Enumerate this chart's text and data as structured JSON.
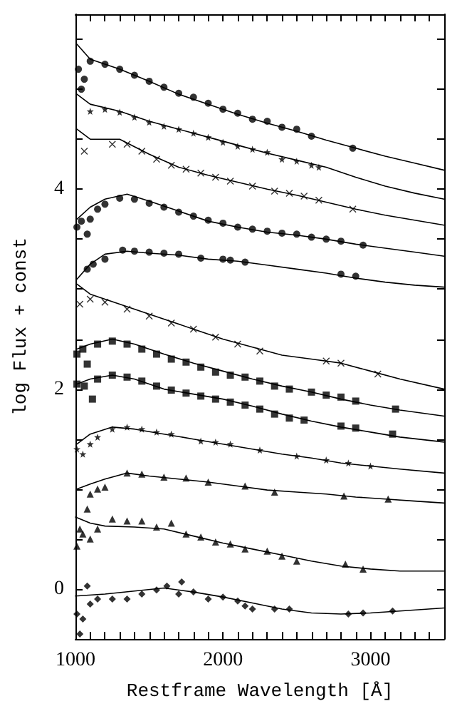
{
  "chart_data": {
    "type": "scatter",
    "xlabel": "Restframe Wavelength [Å]",
    "ylabel": "log Flux + const",
    "xlim": [
      1000,
      3500
    ],
    "ylim": [
      -0.5,
      5.75
    ],
    "xticks": [
      1000,
      {
        "value": 1100,
        "label": null
      },
      {
        "value": 1200,
        "label": null
      },
      {
        "value": 1300,
        "label": null
      },
      {
        "value": 1400,
        "label": null
      },
      {
        "value": 1500,
        "label": null
      },
      {
        "value": 1600,
        "label": null
      },
      {
        "value": 1700,
        "label": null
      },
      {
        "value": 1800,
        "label": null
      },
      {
        "value": 1900,
        "label": null
      },
      2000,
      {
        "value": 2100,
        "label": null
      },
      {
        "value": 2200,
        "label": null
      },
      {
        "value": 2300,
        "label": null
      },
      {
        "value": 2400,
        "label": null
      },
      {
        "value": 2500,
        "label": null
      },
      {
        "value": 2600,
        "label": null
      },
      {
        "value": 2700,
        "label": null
      },
      {
        "value": 2800,
        "label": null
      },
      {
        "value": 2900,
        "label": null
      },
      3000,
      {
        "value": 3100,
        "label": null
      },
      {
        "value": 3200,
        "label": null
      },
      {
        "value": 3300,
        "label": null
      },
      {
        "value": 3400,
        "label": null
      }
    ],
    "yticks": [
      {
        "value": -0.5,
        "label": null
      },
      0,
      {
        "value": 0.5,
        "label": null
      },
      {
        "value": 1,
        "label": null
      },
      {
        "value": 1.5,
        "label": null
      },
      2,
      {
        "value": 2.5,
        "label": null
      },
      {
        "value": 3,
        "label": null
      },
      {
        "value": 3.5,
        "label": null
      },
      4,
      {
        "value": 4.5,
        "label": null
      },
      {
        "value": 5,
        "label": null
      },
      {
        "value": 5.5,
        "label": null
      }
    ],
    "grid": false,
    "series": [
      {
        "type": "line",
        "marker": "none",
        "color": "#000000",
        "x": [
          1010,
          1100,
          1300,
          1500,
          1700,
          1900,
          2100,
          2300,
          2500,
          2700,
          2900,
          3100,
          3300,
          3500
        ],
        "values": [
          5.45,
          5.3,
          5.2,
          5.08,
          4.95,
          4.85,
          4.75,
          4.66,
          4.58,
          4.49,
          4.41,
          4.33,
          4.26,
          4.19
        ]
      },
      {
        "marker": "circle",
        "color": "#000000",
        "x": [
          1020,
          1040,
          1060,
          1100,
          1200,
          1300,
          1400,
          1500,
          1600,
          1700,
          1800,
          1900,
          2000,
          2100,
          2200,
          2300,
          2400,
          2500,
          2600,
          2880
        ],
        "values": [
          5.2,
          5.0,
          5.1,
          5.28,
          5.25,
          5.2,
          5.14,
          5.08,
          5.02,
          4.96,
          4.92,
          4.86,
          4.8,
          4.76,
          4.7,
          4.68,
          4.62,
          4.6,
          4.53,
          4.41
        ]
      },
      {
        "type": "line",
        "marker": "none",
        "color": "#000000",
        "x": [
          1010,
          1100,
          1300,
          1500,
          1700,
          1900,
          2100,
          2300,
          2500,
          2700,
          2900,
          3100,
          3300,
          3500
        ],
        "values": [
          4.95,
          4.85,
          4.78,
          4.68,
          4.6,
          4.52,
          4.44,
          4.36,
          4.29,
          4.22,
          4.12,
          4.03,
          3.96,
          3.9
        ]
      },
      {
        "marker": "star",
        "color": "#000000",
        "x": [
          1100,
          1200,
          1300,
          1400,
          1500,
          1600,
          1700,
          1800,
          1900,
          2000,
          2100,
          2200,
          2300,
          2400,
          2500,
          2600,
          2650
        ],
        "values": [
          4.78,
          4.8,
          4.77,
          4.72,
          4.67,
          4.63,
          4.6,
          4.56,
          4.52,
          4.47,
          4.43,
          4.4,
          4.37,
          4.3,
          4.28,
          4.24,
          4.22
        ]
      },
      {
        "type": "line",
        "marker": "none",
        "color": "#000000",
        "x": [
          1010,
          1100,
          1300,
          1500,
          1700,
          1900,
          2100,
          2300,
          2500,
          2700,
          2900,
          3100,
          3300,
          3500
        ],
        "values": [
          4.6,
          4.5,
          4.5,
          4.35,
          4.22,
          4.14,
          4.07,
          4.0,
          3.94,
          3.87,
          3.8,
          3.74,
          3.69,
          3.64
        ]
      },
      {
        "marker": "cross",
        "color": "#000000",
        "x": [
          1060,
          1250,
          1350,
          1450,
          1550,
          1650,
          1750,
          1850,
          1950,
          2050,
          2200,
          2350,
          2450,
          2550,
          2650,
          2880
        ],
        "values": [
          4.38,
          4.45,
          4.45,
          4.38,
          4.3,
          4.24,
          4.2,
          4.16,
          4.12,
          4.08,
          4.03,
          3.98,
          3.96,
          3.93,
          3.89,
          3.8
        ]
      },
      {
        "type": "line",
        "marker": "none",
        "color": "#000000",
        "x": [
          1010,
          1100,
          1200,
          1350,
          1500,
          1700,
          1900,
          2100,
          2300,
          2500,
          2700,
          2900,
          3100,
          3300,
          3500
        ],
        "values": [
          3.7,
          3.82,
          3.9,
          3.95,
          3.88,
          3.78,
          3.68,
          3.62,
          3.57,
          3.54,
          3.5,
          3.45,
          3.41,
          3.37,
          3.33
        ]
      },
      {
        "marker": "circle",
        "color": "#000000",
        "x": [
          1010,
          1040,
          1080,
          1100,
          1150,
          1200,
          1300,
          1400,
          1500,
          1600,
          1700,
          1800,
          1900,
          2000,
          2100,
          2200,
          2300,
          2400,
          2500,
          2600,
          2700,
          2800,
          2950
        ],
        "values": [
          3.62,
          3.68,
          3.55,
          3.7,
          3.8,
          3.85,
          3.91,
          3.9,
          3.86,
          3.82,
          3.77,
          3.73,
          3.69,
          3.66,
          3.62,
          3.6,
          3.58,
          3.56,
          3.55,
          3.52,
          3.5,
          3.48,
          3.44
        ]
      },
      {
        "type": "line",
        "marker": "none",
        "color": "#000000",
        "x": [
          1010,
          1100,
          1200,
          1350,
          1500,
          1700,
          1900,
          2100,
          2300,
          2500,
          2700,
          2900,
          3100,
          3300,
          3500
        ],
        "values": [
          3.1,
          3.25,
          3.35,
          3.38,
          3.36,
          3.34,
          3.3,
          3.28,
          3.24,
          3.2,
          3.16,
          3.11,
          3.07,
          3.04,
          3.02
        ]
      },
      {
        "marker": "circle",
        "color": "#000000",
        "x": [
          1080,
          1120,
          1200,
          1320,
          1400,
          1500,
          1600,
          1700,
          1850,
          2000,
          2050,
          2150,
          2800,
          2900
        ],
        "values": [
          3.2,
          3.25,
          3.3,
          3.39,
          3.38,
          3.37,
          3.36,
          3.35,
          3.31,
          3.3,
          3.29,
          3.27,
          3.15,
          3.13
        ]
      },
      {
        "type": "line",
        "marker": "none",
        "color": "#000000",
        "x": [
          1010,
          1100,
          1200,
          1400,
          1600,
          1800,
          2000,
          2200,
          2400,
          2600,
          2800,
          3000,
          3200,
          3500
        ],
        "values": [
          3.05,
          2.95,
          2.9,
          2.8,
          2.7,
          2.6,
          2.5,
          2.42,
          2.34,
          2.3,
          2.26,
          2.18,
          2.1,
          2.0
        ]
      },
      {
        "marker": "cross",
        "color": "#000000",
        "x": [
          1030,
          1100,
          1200,
          1350,
          1500,
          1650,
          1800,
          1950,
          2100,
          2250,
          2700,
          2800,
          3050
        ],
        "values": [
          2.85,
          2.9,
          2.87,
          2.8,
          2.73,
          2.66,
          2.6,
          2.52,
          2.45,
          2.38,
          2.28,
          2.26,
          2.15
        ]
      },
      {
        "type": "line",
        "marker": "none",
        "color": "#000000",
        "x": [
          1010,
          1100,
          1250,
          1400,
          1600,
          1800,
          2000,
          2200,
          2400,
          2600,
          2800,
          3000,
          3200,
          3500
        ],
        "values": [
          2.4,
          2.45,
          2.5,
          2.45,
          2.35,
          2.26,
          2.18,
          2.1,
          2.03,
          1.97,
          1.9,
          1.84,
          1.79,
          1.73
        ]
      },
      {
        "marker": "square",
        "color": "#000000",
        "x": [
          1010,
          1050,
          1080,
          1150,
          1250,
          1350,
          1450,
          1550,
          1650,
          1750,
          1850,
          1950,
          2050,
          2150,
          2250,
          2350,
          2450,
          2600,
          2700,
          2800,
          2900,
          3170
        ],
        "values": [
          2.35,
          2.4,
          2.25,
          2.45,
          2.48,
          2.45,
          2.4,
          2.35,
          2.3,
          2.27,
          2.22,
          2.17,
          2.14,
          2.12,
          2.08,
          2.03,
          2.0,
          1.97,
          1.94,
          1.92,
          1.88,
          1.8
        ]
      },
      {
        "type": "line",
        "marker": "none",
        "color": "#000000",
        "x": [
          1010,
          1100,
          1250,
          1400,
          1600,
          1800,
          2000,
          2200,
          2400,
          2600,
          2800,
          3000,
          3200,
          3500
        ],
        "values": [
          2.05,
          2.1,
          2.14,
          2.1,
          2.0,
          1.95,
          1.9,
          1.83,
          1.75,
          1.68,
          1.62,
          1.57,
          1.52,
          1.47
        ]
      },
      {
        "marker": "square",
        "color": "#000000",
        "x": [
          1010,
          1060,
          1115,
          1150,
          1250,
          1350,
          1450,
          1550,
          1650,
          1750,
          1850,
          1950,
          2050,
          2150,
          2250,
          2350,
          2450,
          2550,
          2800,
          2900,
          3150
        ],
        "values": [
          2.05,
          2.03,
          1.9,
          2.1,
          2.14,
          2.12,
          2.08,
          2.03,
          1.99,
          1.96,
          1.93,
          1.9,
          1.87,
          1.84,
          1.8,
          1.75,
          1.71,
          1.69,
          1.63,
          1.61,
          1.55
        ]
      },
      {
        "type": "line",
        "marker": "none",
        "color": "#000000",
        "x": [
          1010,
          1100,
          1250,
          1400,
          1600,
          1800,
          2000,
          2200,
          2400,
          2600,
          2800,
          3000,
          3200,
          3500
        ],
        "values": [
          1.45,
          1.55,
          1.62,
          1.6,
          1.55,
          1.5,
          1.45,
          1.4,
          1.35,
          1.31,
          1.26,
          1.23,
          1.2,
          1.16
        ]
      },
      {
        "marker": "star",
        "color": "#000000",
        "x": [
          1010,
          1050,
          1100,
          1150,
          1250,
          1350,
          1450,
          1550,
          1650,
          1850,
          1950,
          2050,
          2250,
          2500,
          2700,
          2850,
          3000
        ],
        "values": [
          1.4,
          1.35,
          1.45,
          1.52,
          1.6,
          1.62,
          1.6,
          1.57,
          1.55,
          1.48,
          1.47,
          1.45,
          1.39,
          1.33,
          1.29,
          1.26,
          1.23
        ]
      },
      {
        "type": "line",
        "marker": "none",
        "color": "#000000",
        "x": [
          1010,
          1100,
          1200,
          1350,
          1500,
          1700,
          1900,
          2100,
          2300,
          2500,
          2700,
          2900,
          3100,
          3300,
          3500
        ],
        "values": [
          1.0,
          1.05,
          1.1,
          1.16,
          1.13,
          1.1,
          1.07,
          1.03,
          0.99,
          0.97,
          0.95,
          0.92,
          0.9,
          0.88,
          0.86
        ]
      },
      {
        "marker": "triangle",
        "color": "#000000",
        "x": [
          1030,
          1080,
          1100,
          1150,
          1200,
          1350,
          1450,
          1600,
          1750,
          1900,
          2150,
          2350,
          2820,
          3120
        ],
        "values": [
          0.6,
          0.8,
          0.95,
          1.0,
          1.02,
          1.16,
          1.15,
          1.12,
          1.11,
          1.07,
          1.03,
          0.97,
          0.93,
          0.9
        ]
      },
      {
        "type": "line",
        "marker": "none",
        "color": "#000000",
        "x": [
          1000,
          1100,
          1200,
          1400,
          1600,
          1800,
          2000,
          2200,
          2400,
          2600,
          2800,
          3000,
          3200,
          3500
        ],
        "values": [
          0.72,
          0.66,
          0.63,
          0.62,
          0.6,
          0.53,
          0.46,
          0.4,
          0.34,
          0.28,
          0.23,
          0.2,
          0.18,
          0.18
        ]
      },
      {
        "marker": "triangle",
        "color": "#000000",
        "x": [
          1010,
          1050,
          1100,
          1150,
          1250,
          1350,
          1450,
          1550,
          1650,
          1750,
          1850,
          1950,
          2050,
          2150,
          2300,
          2400,
          2500,
          2830,
          2950
        ],
        "values": [
          0.43,
          0.55,
          0.5,
          0.6,
          0.7,
          0.68,
          0.68,
          0.62,
          0.66,
          0.55,
          0.52,
          0.47,
          0.45,
          0.4,
          0.38,
          0.33,
          0.28,
          0.25,
          0.2
        ]
      },
      {
        "type": "line",
        "marker": "none",
        "color": "#000000",
        "x": [
          1000,
          1200,
          1400,
          1600,
          1800,
          2000,
          2200,
          2400,
          2600,
          2800,
          3000,
          3200,
          3500
        ],
        "values": [
          -0.07,
          -0.05,
          -0.02,
          0.01,
          -0.03,
          -0.08,
          -0.14,
          -0.2,
          -0.24,
          -0.25,
          -0.24,
          -0.22,
          -0.19
        ]
      },
      {
        "marker": "diamond",
        "color": "#000000",
        "x": [
          1010,
          1030,
          1050,
          1080,
          1100,
          1150,
          1250,
          1350,
          1450,
          1550,
          1620,
          1700,
          1720,
          1800,
          1900,
          2000,
          2100,
          2150,
          2200,
          2350,
          2450,
          2850,
          2950,
          3150
        ],
        "values": [
          -0.25,
          -0.45,
          -0.3,
          0.03,
          -0.15,
          -0.1,
          -0.1,
          -0.1,
          -0.05,
          -0.01,
          0.03,
          -0.05,
          0.07,
          -0.03,
          -0.1,
          -0.08,
          -0.12,
          -0.17,
          -0.2,
          -0.2,
          -0.2,
          -0.25,
          -0.24,
          -0.22
        ]
      }
    ]
  }
}
